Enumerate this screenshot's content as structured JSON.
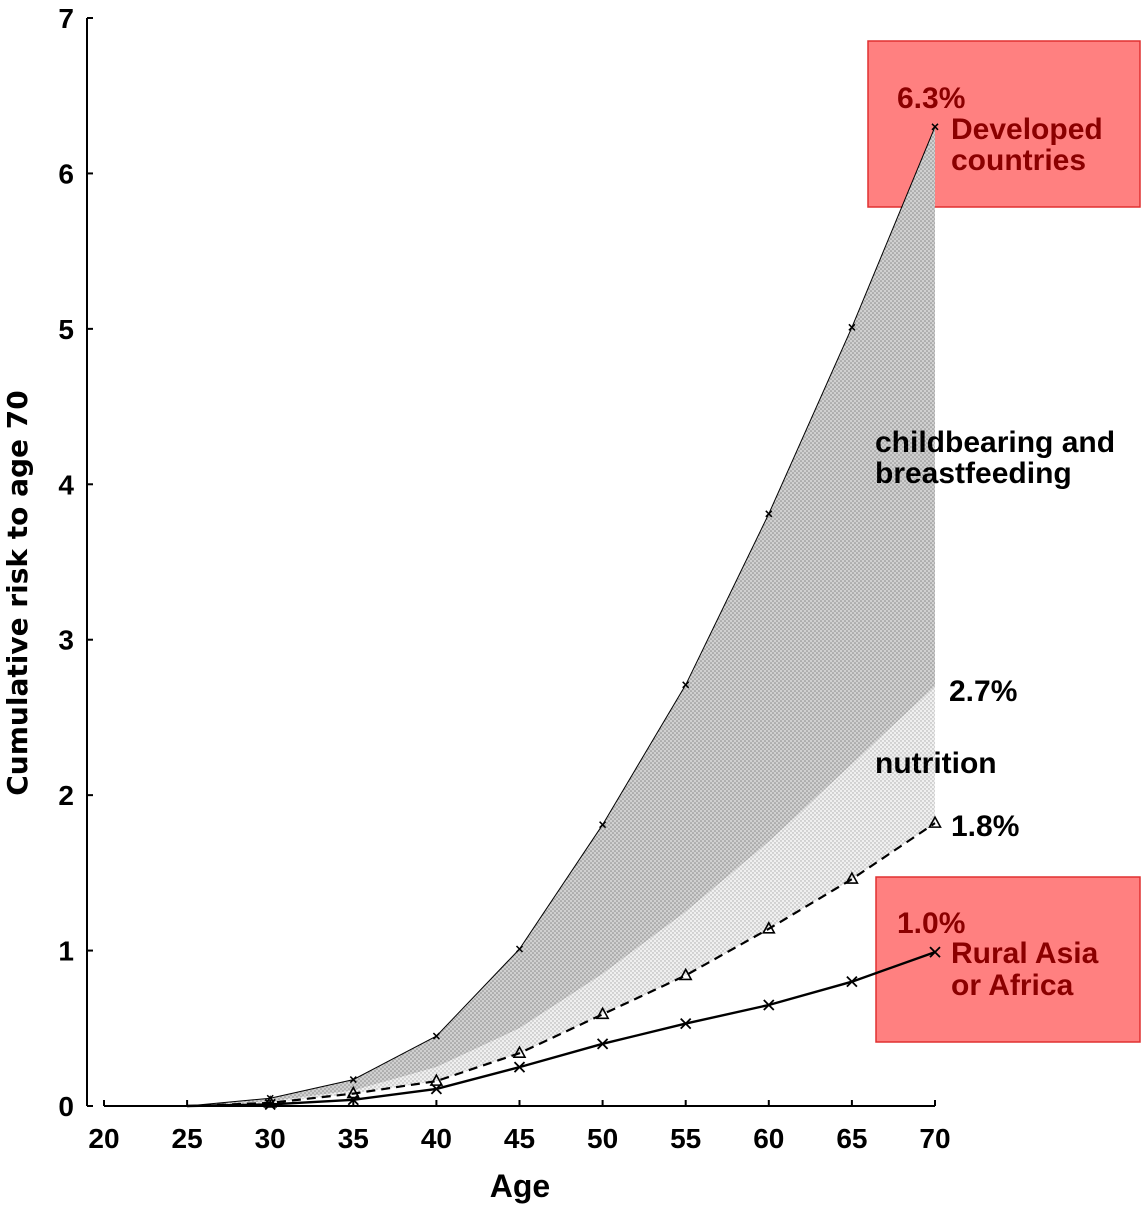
{
  "chart_data": {
    "type": "line",
    "xlabel": "Age",
    "ylabel": "Cumulative risk to age 70",
    "xlim": [
      20,
      70
    ],
    "ylim": [
      0,
      7
    ],
    "xticks": [
      "20",
      "25",
      "30",
      "35",
      "40",
      "45",
      "50",
      "55",
      "60",
      "65",
      "70"
    ],
    "yticks": [
      "0",
      "1",
      "2",
      "3",
      "4",
      "5",
      "6",
      "7"
    ],
    "grid": false,
    "legend": "none",
    "series": [
      {
        "key": "developed",
        "style": "solid-thin",
        "marker": "tick",
        "x": [
          25,
          30,
          35,
          40,
          45,
          50,
          55,
          60,
          65,
          70
        ],
        "y": [
          0.0,
          0.05,
          0.17,
          0.45,
          1.01,
          1.81,
          2.71,
          3.81,
          5.01,
          6.3
        ]
      },
      {
        "key": "nutrition_boundary",
        "style": "none",
        "marker": "none",
        "x": [
          25,
          30,
          35,
          40,
          45,
          50,
          55,
          60,
          65,
          70
        ],
        "y": [
          0.0,
          0.03,
          0.1,
          0.25,
          0.5,
          0.85,
          1.25,
          1.7,
          2.2,
          2.7
        ]
      },
      {
        "key": "dashed",
        "style": "dashed",
        "marker": "triangle",
        "x": [
          25,
          30,
          35,
          40,
          45,
          50,
          55,
          60,
          65,
          70
        ],
        "y": [
          0.0,
          0.02,
          0.08,
          0.16,
          0.34,
          0.59,
          0.84,
          1.14,
          1.46,
          1.82
        ]
      },
      {
        "key": "rural",
        "style": "solid",
        "marker": "x",
        "x": [
          25,
          30,
          35,
          40,
          45,
          50,
          55,
          60,
          65,
          70
        ],
        "y": [
          0.0,
          0.01,
          0.04,
          0.11,
          0.25,
          0.4,
          0.53,
          0.65,
          0.8,
          0.99
        ]
      }
    ],
    "annotations": {
      "developed_pct": "6.3%",
      "developed_line1": "Developed",
      "developed_line2": "countries",
      "childbearing_line1": "childbearing and",
      "childbearing_line2": "breastfeeding",
      "nutrition_pct": "2.7%",
      "nutrition": "nutrition",
      "dashed_pct": "1.8%",
      "rural_pct": "1.0%",
      "rural_line1": "Rural Asia",
      "rural_line2": "or Africa"
    },
    "colors": {
      "band_childbearing": "#c8c8c8",
      "band_nutrition": "#e8e8e8",
      "highlight_box": "#ff8080",
      "highlight_border": "#e03030",
      "highlight_text": "#8b0000"
    }
  }
}
